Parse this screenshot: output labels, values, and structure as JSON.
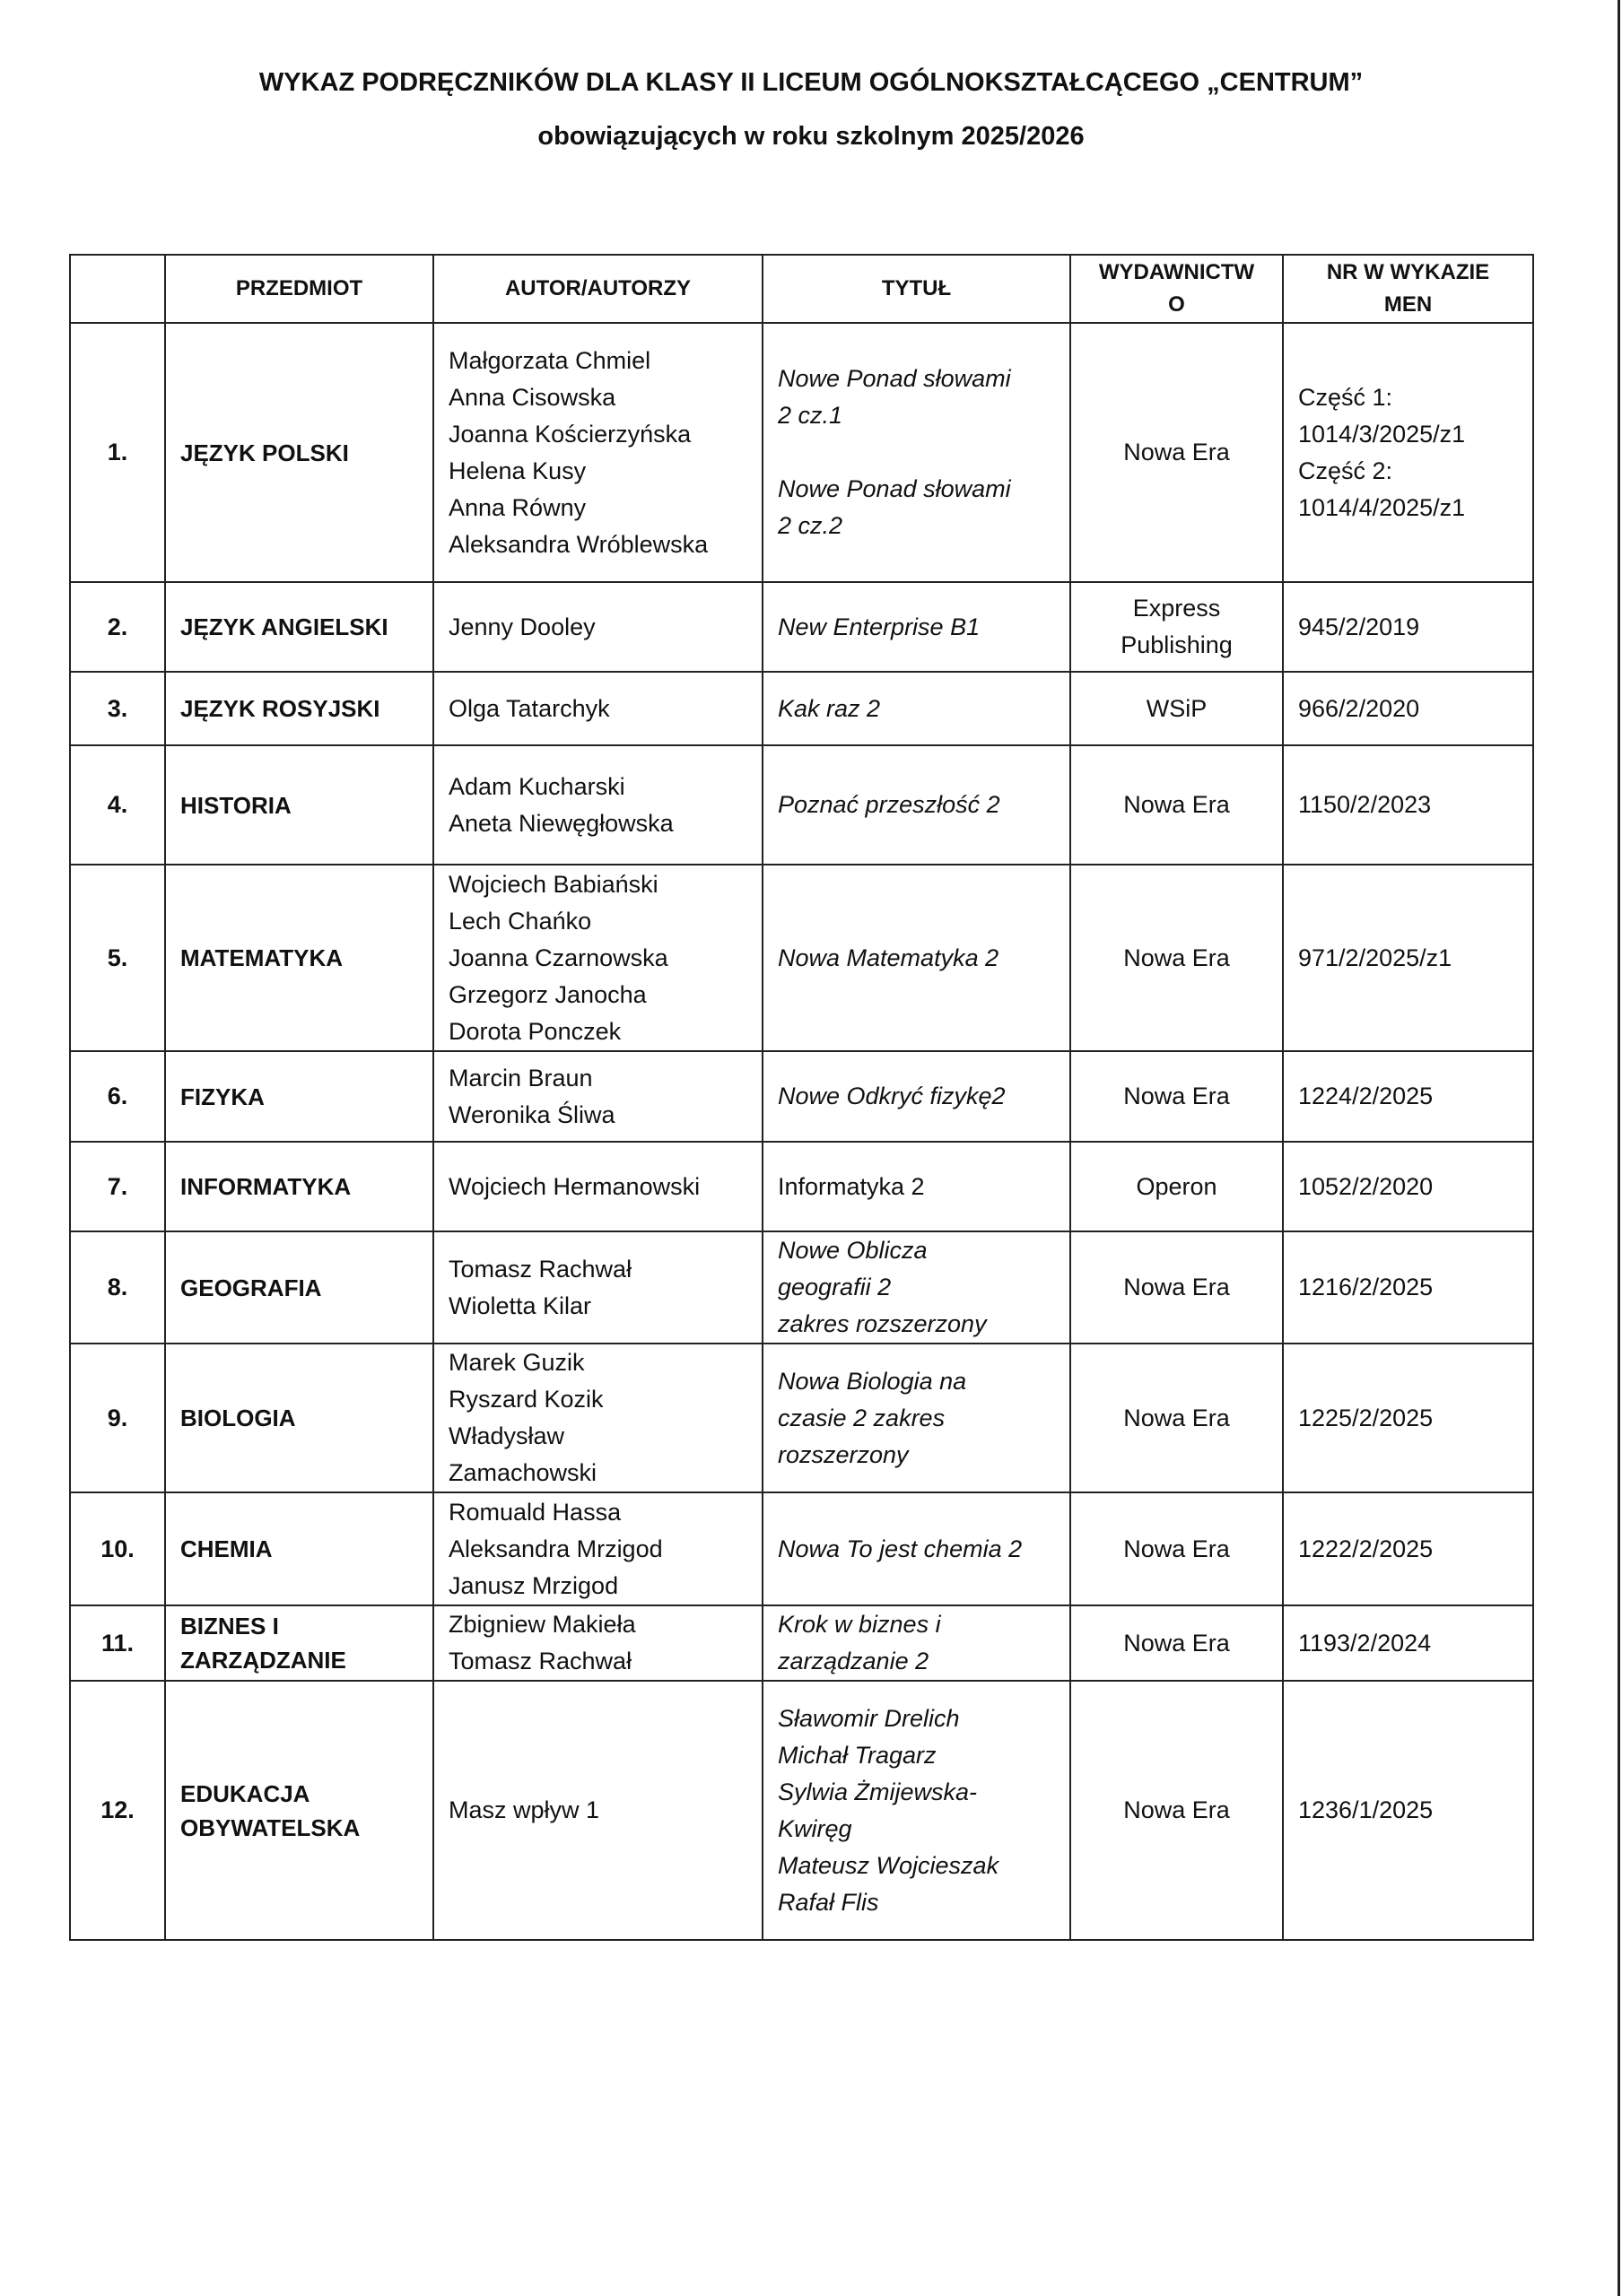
{
  "header": {
    "title_line1": "WYKAZ PODRĘCZNIKÓW DLA KLASY II  LICEUM  OGÓLNOKSZTAŁCĄCEGO „CENTRUM”",
    "title_line2": "obowiązujących w  roku szkolnym 2025/2026"
  },
  "table": {
    "columns": [
      "",
      "PRZEDMIOT",
      "AUTOR/AUTORZY",
      "TYTUŁ",
      "WYDAWNICTW\nO",
      "NR W WYKAZIE\nMEN"
    ],
    "rows": [
      {
        "num": "1.",
        "subject": "JĘZYK POLSKI",
        "authors": "Małgorzata Chmiel\nAnna Cisowska\n Joanna Kościerzyńska\nHelena Kusy\n Anna Równy\nAleksandra Wróblewska",
        "title": "Nowe  Ponad  słowami\n2 cz.1\n\nNowe  Ponad  słowami\n2 cz.2",
        "publisher": "Nowa Era",
        "men": "Część 1:\n1014/3/2025/z1\nCzęść 2:\n1014/4/2025/z1"
      },
      {
        "num": "2.",
        "subject": "JĘZYK ANGIELSKI",
        "authors": "Jenny Dooley",
        "title": "New Enterprise B1",
        "publisher": "Express\nPublishing",
        "men": "945/2/2019"
      },
      {
        "num": "3.",
        "subject": "JĘZYK ROSYJSKI",
        "authors": "Olga Tatarchyk",
        "title": "Kak raz 2",
        "publisher": "WSiP",
        "men": "966/2/2020"
      },
      {
        "num": "4.",
        "subject": "HISTORIA",
        "authors": " Adam Kucharski\n Aneta Niewęgłowska",
        "title": "Poznać przeszłość 2",
        "publisher": "Nowa Era",
        "men": "   1150/2/2023"
      },
      {
        "num": "5.",
        "subject": "MATEMATYKA",
        "authors": "Wojciech Babiański\nLech Chańko\nJoanna Czarnowska\nGrzegorz Janocha\nDorota Ponczek",
        "title": "Nowa Matematyka 2",
        "publisher": "Nowa Era",
        "men": "971/2/2025/z1"
      },
      {
        "num": "6.",
        "subject": "FIZYKA",
        "authors": "Marcin Braun\nWeronika Śliwa",
        "title": "Nowe Odkryć  fizykę2",
        "publisher": "Nowa Era",
        "men": "1224/2/2025"
      },
      {
        "num": "7.",
        "subject": "INFORMATYKA",
        "authors": "Wojciech Hermanowski",
        "title": "Informatyka 2",
        "publisher": "Operon",
        "men": "1052/2/2020"
      },
      {
        "num": "8.",
        "subject": "GEOGRAFIA",
        "authors": "Tomasz Rachwał\nWioletta Kilar",
        "title": "Nowe Oblicza\ngeografii 2\nzakres rozszerzony",
        "publisher": "Nowa Era",
        "men": "  1216/2/2025"
      },
      {
        "num": "9.",
        "subject": "BIOLOGIA",
        "authors": "Marek Guzik\nRyszard Kozik\nWładysław\nZamachowski",
        "title": "Nowa Biologia na\nczasie 2 zakres\nrozszerzony",
        "publisher": "Nowa Era",
        "men": "1225/2/2025"
      },
      {
        "num": "10.",
        "subject": "CHEMIA",
        "authors": "Romuald Hassa\nAleksandra Mrzigod\nJanusz Mrzigod",
        "title": "Nowa To jest chemia 2",
        "publisher": "Nowa Era",
        "men": "1222/2/2025"
      },
      {
        "num": "11.",
        "subject": "BIZNES I\nZARZĄDZANIE",
        "authors": "Zbigniew Makieła\nTomasz Rachwał",
        "title": "Krok w biznes i\nzarządzanie 2",
        "publisher": "Nowa Era",
        "men": "1193/2/2024"
      },
      {
        "num": "12.",
        "subject": "EDUKACJA\nOBYWATELSKA",
        "authors": "Masz wpływ 1",
        "title": "Sławomir Drelich\nMichał Tragarz\nSylwia Żmijewska-\nKwiręg\nMateusz Wojcieszak\nRafał Flis",
        "publisher": "Nowa Era",
        "men": "1236/1/2025"
      }
    ]
  }
}
